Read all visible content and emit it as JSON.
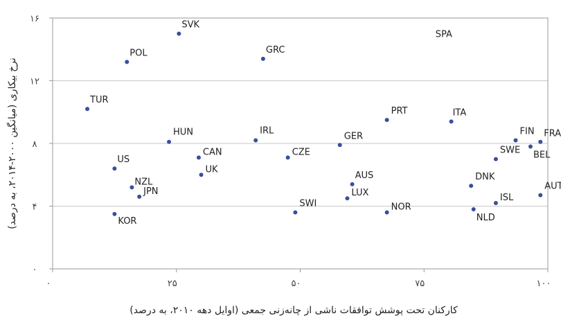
{
  "chart_data": {
    "type": "scatter",
    "xlabel": "کارکنان تحت پوشش توافقات ناشی از چانه‌زنی جمعی (اوایل دهه ۲۰۱۰، به درصد)",
    "ylabel": "نرخ بیکاری (میانگین ۲۰۰۰-۲۰۱۴، به درصد)",
    "xlim": [
      0,
      100
    ],
    "ylim": [
      0,
      16
    ],
    "xticks": [
      0,
      25,
      50,
      75,
      100
    ],
    "yticks": [
      0,
      4,
      8,
      12,
      16
    ],
    "xtick_labels": [
      "۰",
      "۲۵",
      "۵۰",
      "۷۵",
      "۱۰۰"
    ],
    "ytick_labels": [
      "۰",
      "۴",
      "۸",
      "۱۲",
      "۱۶"
    ],
    "grid": "horizontal",
    "color": "#3a4f9c",
    "points": [
      {
        "label": "SVK",
        "x": 25.5,
        "y": 15.0
      },
      {
        "label": "SPA",
        "x": 79.0,
        "y": 15.0,
        "hidden_marker": true
      },
      {
        "label": "POL",
        "x": 15.0,
        "y": 13.2
      },
      {
        "label": "GRC",
        "x": 42.5,
        "y": 13.4
      },
      {
        "label": "TUR",
        "x": 7.0,
        "y": 10.2
      },
      {
        "label": "PRT",
        "x": 67.5,
        "y": 9.5
      },
      {
        "label": "ITA",
        "x": 80.5,
        "y": 9.4
      },
      {
        "label": "HUN",
        "x": 23.5,
        "y": 8.1
      },
      {
        "label": "IRL",
        "x": 41.0,
        "y": 8.2
      },
      {
        "label": "GER",
        "x": 58.0,
        "y": 7.9
      },
      {
        "label": "FIN",
        "x": 93.5,
        "y": 8.2
      },
      {
        "label": "FRA",
        "x": 98.5,
        "y": 8.1
      },
      {
        "label": "BEL",
        "x": 96.5,
        "y": 7.8
      },
      {
        "label": "CAN",
        "x": 29.5,
        "y": 7.1
      },
      {
        "label": "CZE",
        "x": 47.5,
        "y": 7.1
      },
      {
        "label": "SWE",
        "x": 89.5,
        "y": 7.0
      },
      {
        "label": "US",
        "x": 12.5,
        "y": 6.4
      },
      {
        "label": "UK",
        "x": 30.0,
        "y": 6.0
      },
      {
        "label": "DNK",
        "x": 84.5,
        "y": 5.3
      },
      {
        "label": "AUS",
        "x": 60.5,
        "y": 5.4
      },
      {
        "label": "NZL",
        "x": 16.0,
        "y": 5.2
      },
      {
        "label": "JPN",
        "x": 17.5,
        "y": 4.6
      },
      {
        "label": "LUX",
        "x": 59.5,
        "y": 4.5
      },
      {
        "label": "AUT",
        "x": 98.5,
        "y": 4.7
      },
      {
        "label": "ISL",
        "x": 89.5,
        "y": 4.2
      },
      {
        "label": "NLD",
        "x": 85.0,
        "y": 3.8
      },
      {
        "label": "KOR",
        "x": 12.5,
        "y": 3.5
      },
      {
        "label": "SWI",
        "x": 49.0,
        "y": 3.6
      },
      {
        "label": "NOR",
        "x": 67.5,
        "y": 3.6
      }
    ]
  }
}
